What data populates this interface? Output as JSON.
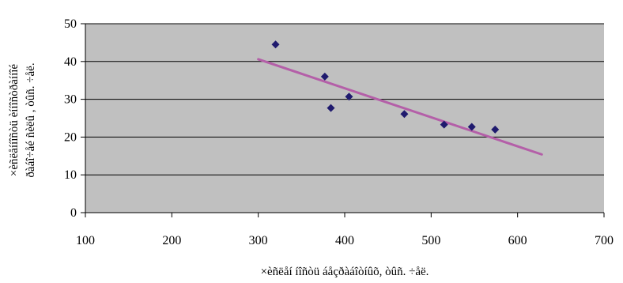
{
  "chart_data": {
    "type": "scatter",
    "xlabel": "×èñëåí íîñòü áåçðàáîòíûõ, òûñ. ÷åë.",
    "ylabel": [
      "×èñëåííîñòü èííîñòðàííîé",
      "ðàáî÷åé ñèëû , òûñ. ÷åë."
    ],
    "xlim": [
      100,
      700
    ],
    "ylim": [
      0,
      50
    ],
    "xticks": [
      100,
      200,
      300,
      400,
      500,
      600,
      700
    ],
    "yticks": [
      0,
      10,
      20,
      30,
      40,
      50
    ],
    "grid": "horizontal",
    "legend": "none",
    "series": [
      {
        "type": "scatter",
        "marker": "diamond",
        "color": "#1f1a6e",
        "points": [
          {
            "x": 320,
            "y": 44.5
          },
          {
            "x": 377,
            "y": 36.0
          },
          {
            "x": 384,
            "y": 27.7
          },
          {
            "x": 405,
            "y": 30.7
          },
          {
            "x": 469,
            "y": 26.1
          },
          {
            "x": 515,
            "y": 23.3
          },
          {
            "x": 547,
            "y": 22.7
          },
          {
            "x": 574,
            "y": 22.0
          }
        ]
      },
      {
        "type": "line",
        "role": "trendline",
        "color": "#b45fa8",
        "points": [
          {
            "x": 300,
            "y": 40.6
          },
          {
            "x": 628,
            "y": 15.4
          }
        ]
      }
    ],
    "colors": {
      "plot_background": "#c0c0c0",
      "gridline": "#000000"
    }
  }
}
